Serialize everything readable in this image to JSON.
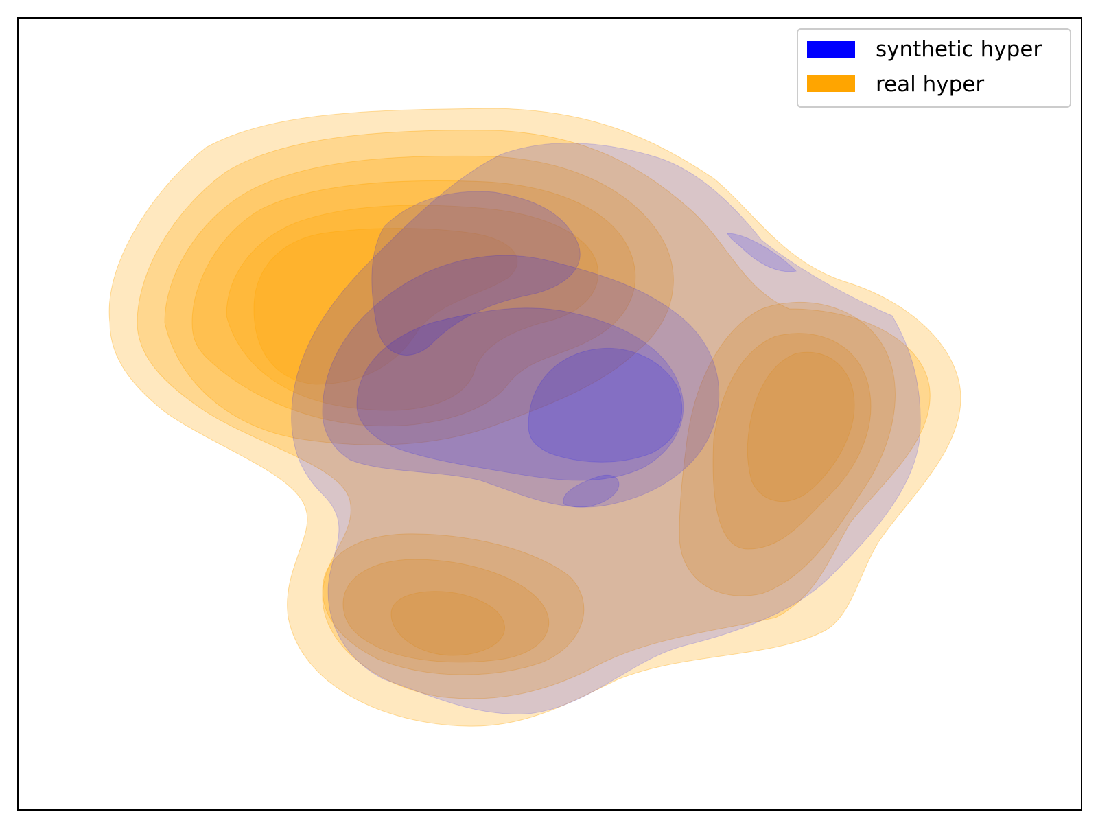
{
  "chart_data": {
    "type": "kde-contour",
    "title": "",
    "xlabel": "",
    "ylabel": "",
    "axis_ticks_visible": false,
    "grid": false,
    "legend": {
      "placement": "top-right"
    },
    "series": [
      {
        "name": "synthetic hyper",
        "color": "#0000ff",
        "fill_alpha": 0.15,
        "levels": 10,
        "modes": [
          {
            "x": 0.62,
            "y": 0.48,
            "peak": 1.0
          },
          {
            "x": 0.35,
            "y": 0.4,
            "peak": 0.8
          },
          {
            "x": 0.55,
            "y": 0.66,
            "peak": 0.7
          },
          {
            "x": 0.75,
            "y": 0.44,
            "peak": 0.6
          }
        ]
      },
      {
        "name": "real hyper",
        "color": "#ffa500",
        "fill_alpha": 0.25,
        "levels": 10,
        "modes": [
          {
            "x": 0.25,
            "y": 0.63,
            "peak": 1.0
          },
          {
            "x": 0.38,
            "y": 0.28,
            "peak": 0.75
          },
          {
            "x": 0.76,
            "y": 0.46,
            "peak": 0.7
          },
          {
            "x": 0.48,
            "y": 0.55,
            "peak": 0.55
          }
        ]
      }
    ]
  }
}
